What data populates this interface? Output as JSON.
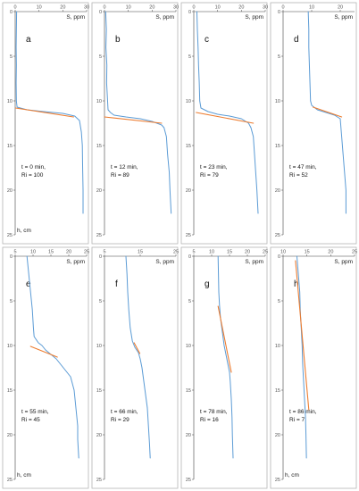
{
  "colors": {
    "profile": "#5b9bd5",
    "fit": "#ed7d31",
    "frame": "#b4b4b4",
    "axis": "#404040"
  },
  "chart_data": [
    {
      "type": "line",
      "label": "a",
      "s_label": "S, ppm",
      "h_label": "h, cm",
      "time_text": "t = 0 min,",
      "ri_text": "Ri = 100",
      "xlim": [
        0,
        30
      ],
      "xticks": [
        "0",
        "10",
        "20",
        "30"
      ],
      "ylim": [
        0,
        25
      ],
      "yticks": [
        "0",
        "5",
        "10",
        "15",
        "20",
        "25"
      ],
      "y_reversed": true,
      "series": [
        {
          "values": [
            [
              0.6,
              0
            ],
            [
              0.5,
              2
            ],
            [
              0.4,
              4
            ],
            [
              0.5,
              6
            ],
            [
              0.4,
              8
            ],
            [
              0.5,
              10
            ],
            [
              0.8,
              10.7
            ],
            [
              5,
              11
            ],
            [
              12,
              11.2
            ],
            [
              20,
              11.4
            ],
            [
              25,
              11.7
            ],
            [
              27,
              12.2
            ],
            [
              27.8,
              13.5
            ],
            [
              28.2,
              15
            ],
            [
              28.3,
              17
            ],
            [
              28.5,
              20
            ],
            [
              28.5,
              22.6
            ]
          ]
        },
        {
          "role": "fit",
          "values": [
            [
              0.2,
              10.8
            ],
            [
              24.5,
              11.8
            ]
          ]
        }
      ]
    },
    {
      "type": "line",
      "label": "b",
      "s_label": "S, ppm",
      "h_label": "",
      "time_text": "t = 12 min,",
      "ri_text": "Ri = 89",
      "xlim": [
        0,
        30
      ],
      "xticks": [
        "0",
        "10",
        "20",
        "30"
      ],
      "ylim": [
        0,
        25
      ],
      "yticks": [
        "0",
        "5",
        "10",
        "15",
        "20",
        "25"
      ],
      "y_reversed": true,
      "series": [
        {
          "values": [
            [
              0.5,
              0
            ],
            [
              0.8,
              2
            ],
            [
              0.6,
              4
            ],
            [
              1,
              6
            ],
            [
              0.9,
              8
            ],
            [
              1.3,
              10
            ],
            [
              1.5,
              11
            ],
            [
              2.5,
              11.3
            ],
            [
              4,
              11.6
            ],
            [
              9,
              11.8
            ],
            [
              15,
              12
            ],
            [
              20,
              12.3
            ],
            [
              24,
              12.7
            ],
            [
              25,
              13
            ],
            [
              26,
              14
            ],
            [
              26.5,
              16
            ],
            [
              27.2,
              18
            ],
            [
              27.5,
              20
            ],
            [
              28,
              22.6
            ]
          ]
        },
        {
          "role": "fit",
          "values": [
            [
              0,
              11.8
            ],
            [
              24,
              12.5
            ]
          ]
        }
      ]
    },
    {
      "type": "line",
      "label": "c",
      "s_label": "S, ppm",
      "h_label": "",
      "time_text": "t = 23 min,",
      "ri_text": "Ri = 79",
      "xlim": [
        0,
        30
      ],
      "xticks": [
        "0",
        "10",
        "20",
        "30"
      ],
      "ylim": [
        0,
        25
      ],
      "yticks": [
        "0",
        "5",
        "10",
        "15",
        "20",
        "25"
      ],
      "y_reversed": true,
      "series": [
        {
          "values": [
            [
              1.3,
              0
            ],
            [
              1.5,
              2
            ],
            [
              1.8,
              4
            ],
            [
              2,
              6
            ],
            [
              2.3,
              8
            ],
            [
              2.5,
              10
            ],
            [
              3,
              10.8
            ],
            [
              6,
              11.2
            ],
            [
              10,
              11.5
            ],
            [
              15,
              11.7
            ],
            [
              20,
              12
            ],
            [
              23,
              12.5
            ],
            [
              24,
              13
            ],
            [
              25,
              14
            ],
            [
              25.5,
              16
            ],
            [
              26,
              18
            ],
            [
              26.5,
              20
            ],
            [
              27,
              22.6
            ]
          ]
        },
        {
          "role": "fit",
          "values": [
            [
              1,
              11.3
            ],
            [
              25,
              12.5
            ]
          ]
        }
      ]
    },
    {
      "type": "line",
      "label": "d",
      "s_label": "S, ppm",
      "h_label": "",
      "time_text": "t = 47 min,",
      "ri_text": "Ri = 52",
      "xlim": [
        0,
        25
      ],
      "xticks": [
        "0",
        "10",
        "20"
      ],
      "ylim": [
        0,
        25
      ],
      "yticks": [
        "0",
        "5",
        "10",
        "15",
        "20",
        "25"
      ],
      "y_reversed": true,
      "series": [
        {
          "values": [
            [
              8.8,
              0
            ],
            [
              9,
              2
            ],
            [
              9,
              4
            ],
            [
              9.2,
              6
            ],
            [
              9.4,
              8
            ],
            [
              9.6,
              10
            ],
            [
              10,
              10.5
            ],
            [
              12,
              11
            ],
            [
              15,
              11.3
            ],
            [
              18,
              11.6
            ],
            [
              20,
              12
            ],
            [
              20.5,
              14
            ],
            [
              21,
              16
            ],
            [
              21.5,
              18
            ],
            [
              22,
              20
            ],
            [
              22,
              22.6
            ]
          ]
        },
        {
          "role": "fit",
          "values": [
            [
              10.5,
              10.7
            ],
            [
              20.5,
              11.8
            ]
          ]
        }
      ]
    },
    {
      "type": "line",
      "label": "e",
      "s_label": "S, ppm",
      "h_label": "h, cm",
      "time_text": "t = 55 min,",
      "ri_text": "Ri = 45",
      "xlim": [
        5,
        25
      ],
      "xticks": [
        "5",
        "10",
        "15",
        "20",
        "25"
      ],
      "ylim": [
        0,
        25
      ],
      "yticks": [
        "0",
        "5",
        "10",
        "15",
        "20",
        "25"
      ],
      "y_reversed": true,
      "series": [
        {
          "values": [
            [
              8.3,
              0
            ],
            [
              8.8,
              2
            ],
            [
              9.3,
              4
            ],
            [
              9.8,
              6
            ],
            [
              10.1,
              8
            ],
            [
              10.3,
              9
            ],
            [
              11.5,
              9.7
            ],
            [
              12.5,
              10
            ],
            [
              13.5,
              10.5
            ],
            [
              15,
              11
            ],
            [
              16.5,
              11.5
            ],
            [
              18.5,
              12.5
            ],
            [
              20.5,
              13.5
            ],
            [
              21.5,
              15
            ],
            [
              22,
              17
            ],
            [
              22.5,
              19
            ],
            [
              22.5,
              20.5
            ],
            [
              22.8,
              22.6
            ]
          ]
        },
        {
          "role": "fit",
          "values": [
            [
              9.3,
              10.1
            ],
            [
              16.8,
              11.3
            ]
          ]
        }
      ]
    },
    {
      "type": "line",
      "label": "f",
      "s_label": "S, ppm",
      "h_label": "",
      "time_text": "t = 66 min,",
      "ri_text": "Ri = 29",
      "xlim": [
        5,
        25
      ],
      "xticks": [
        "5",
        "15",
        "25"
      ],
      "ylim": [
        0,
        25
      ],
      "yticks": [
        "0",
        "5",
        "10",
        "15",
        "20",
        "25"
      ],
      "y_reversed": true,
      "series": [
        {
          "values": [
            [
              11,
              0
            ],
            [
              11.3,
              2
            ],
            [
              11.5,
              4
            ],
            [
              11.8,
              6
            ],
            [
              12.2,
              8
            ],
            [
              12.8,
              9.5
            ],
            [
              13.5,
              10.2
            ],
            [
              14.5,
              10.8
            ],
            [
              15,
              11.5
            ],
            [
              15.5,
              12.5
            ],
            [
              16,
              14
            ],
            [
              16.5,
              15.5
            ],
            [
              17,
              17
            ],
            [
              17.3,
              19
            ],
            [
              17.6,
              21
            ],
            [
              17.8,
              22.6
            ]
          ]
        },
        {
          "role": "fit",
          "values": [
            [
              13.3,
              9.7
            ],
            [
              14.9,
              10.9
            ]
          ]
        }
      ]
    },
    {
      "type": "line",
      "label": "g",
      "s_label": "S, ppm",
      "h_label": "",
      "time_text": "t = 78 min,",
      "ri_text": "Ri = 16",
      "xlim": [
        5,
        25
      ],
      "xticks": [
        "5",
        "10",
        "15",
        "20",
        "25"
      ],
      "ylim": [
        0,
        25
      ],
      "yticks": [
        "0",
        "5",
        "10",
        "15",
        "20",
        "25"
      ],
      "y_reversed": true,
      "series": [
        {
          "values": [
            [
              11.8,
              0
            ],
            [
              11.9,
              2
            ],
            [
              12,
              4
            ],
            [
              12.2,
              5.5
            ],
            [
              12.5,
              7
            ],
            [
              13,
              8.5
            ],
            [
              13.5,
              10
            ],
            [
              14,
              11
            ],
            [
              14.5,
              12
            ],
            [
              15,
              13
            ],
            [
              15.2,
              14
            ],
            [
              15.5,
              16
            ],
            [
              15.7,
              18
            ],
            [
              15.8,
              20
            ],
            [
              16,
              22.6
            ]
          ]
        },
        {
          "role": "fit",
          "values": [
            [
              11.8,
              5.6
            ],
            [
              15.5,
              13
            ]
          ]
        }
      ]
    },
    {
      "type": "line",
      "label": "h",
      "s_label": "S, ppm",
      "h_label": "h, cm",
      "time_text": "t = 86 min,",
      "ri_text": "Ri = 7",
      "xlim": [
        10,
        25
      ],
      "xticks": [
        "10",
        "15",
        "20",
        "25"
      ],
      "ylim": [
        0,
        25
      ],
      "yticks": [
        "0",
        "5",
        "10",
        "15",
        "20",
        "25"
      ],
      "y_reversed": true,
      "series": [
        {
          "values": [
            [
              12.9,
              0
            ],
            [
              13.2,
              2
            ],
            [
              13.5,
              4
            ],
            [
              13.6,
              6
            ],
            [
              13.8,
              8
            ],
            [
              14,
              10
            ],
            [
              14.1,
              12
            ],
            [
              14.3,
              14
            ],
            [
              14.5,
              16
            ],
            [
              14.7,
              18
            ],
            [
              14.8,
              20
            ],
            [
              14.9,
              22.6
            ]
          ]
        },
        {
          "role": "fit",
          "values": [
            [
              12.6,
              0.5
            ],
            [
              15.4,
              17.2
            ]
          ]
        }
      ]
    }
  ]
}
